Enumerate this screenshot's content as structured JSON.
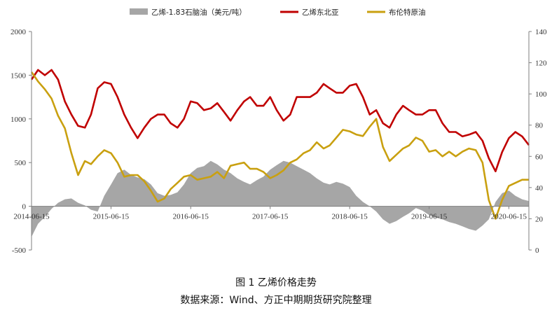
{
  "figure": {
    "title": "图 1  乙烯价格走势",
    "source": "数据来源：Wind、方正中期期货研究院整理"
  },
  "chart_data": {
    "type": "line",
    "legend_position": "top",
    "grid": false,
    "x_axis": {
      "type": "date",
      "range": [
        "2014-06-15",
        "2020-09-15"
      ],
      "tick_labels": [
        "2014-06-15",
        "2015-06-15",
        "2016-06-15",
        "2017-06-15",
        "2018-06-15",
        "2019-06-15",
        "2020-06-15"
      ]
    },
    "y_left": {
      "min": -500,
      "max": 2000,
      "step": 500,
      "tick_labels": [
        "-500",
        "0",
        "500",
        "1000",
        "1500",
        "2000"
      ]
    },
    "y_right": {
      "min": 0,
      "max": 140,
      "step": 20,
      "tick_labels": [
        "0",
        "20",
        "40",
        "60",
        "80",
        "100",
        "120",
        "140"
      ]
    },
    "series": [
      {
        "name": "乙烯-1.83石脑油（美元/吨）",
        "kind": "area",
        "axis": "left",
        "color": "#a6a6a6",
        "x": [
          "2014-06-15",
          "2014-07-15",
          "2014-08-15",
          "2014-09-15",
          "2014-10-15",
          "2014-11-15",
          "2014-12-15",
          "2015-01-15",
          "2015-02-15",
          "2015-03-15",
          "2015-04-15",
          "2015-05-15",
          "2015-06-15",
          "2015-07-15",
          "2015-08-15",
          "2015-09-15",
          "2015-10-15",
          "2015-11-15",
          "2015-12-15",
          "2016-01-15",
          "2016-02-15",
          "2016-03-15",
          "2016-04-15",
          "2016-05-15",
          "2016-06-15",
          "2016-07-15",
          "2016-08-15",
          "2016-09-15",
          "2016-10-15",
          "2016-11-15",
          "2016-12-15",
          "2017-01-15",
          "2017-02-15",
          "2017-03-15",
          "2017-04-15",
          "2017-05-15",
          "2017-06-15",
          "2017-07-15",
          "2017-08-15",
          "2017-09-15",
          "2017-10-15",
          "2017-11-15",
          "2017-12-15",
          "2018-01-15",
          "2018-02-15",
          "2018-03-15",
          "2018-04-15",
          "2018-05-15",
          "2018-06-15",
          "2018-07-15",
          "2018-08-15",
          "2018-09-15",
          "2018-10-15",
          "2018-11-15",
          "2018-12-15",
          "2019-01-15",
          "2019-02-15",
          "2019-03-15",
          "2019-04-15",
          "2019-05-15",
          "2019-06-15",
          "2019-07-15",
          "2019-08-15",
          "2019-09-15",
          "2019-10-15",
          "2019-11-15",
          "2019-12-15",
          "2020-01-15",
          "2020-02-15",
          "2020-03-15",
          "2020-04-15",
          "2020-05-15",
          "2020-06-15",
          "2020-07-15",
          "2020-08-15",
          "2020-09-15"
        ],
        "values": [
          -350,
          -200,
          -120,
          -30,
          40,
          80,
          90,
          40,
          10,
          -40,
          -60,
          120,
          250,
          380,
          420,
          360,
          330,
          310,
          250,
          150,
          120,
          130,
          160,
          250,
          380,
          440,
          460,
          520,
          480,
          420,
          380,
          320,
          280,
          250,
          300,
          340,
          420,
          470,
          520,
          500,
          460,
          420,
          380,
          320,
          270,
          250,
          280,
          260,
          220,
          120,
          50,
          0,
          -60,
          -150,
          -200,
          -170,
          -120,
          -80,
          -20,
          -50,
          -100,
          -130,
          -150,
          -180,
          -200,
          -230,
          -260,
          -280,
          -220,
          -150,
          50,
          150,
          180,
          120,
          80,
          60
        ]
      },
      {
        "name": "乙烯东北亚",
        "kind": "line",
        "axis": "left",
        "color": "#c00000",
        "x": [
          "2014-06-15",
          "2014-07-15",
          "2014-08-15",
          "2014-09-15",
          "2014-10-15",
          "2014-11-15",
          "2014-12-15",
          "2015-01-15",
          "2015-02-15",
          "2015-03-15",
          "2015-04-15",
          "2015-05-15",
          "2015-06-15",
          "2015-07-15",
          "2015-08-15",
          "2015-09-15",
          "2015-10-15",
          "2015-11-15",
          "2015-12-15",
          "2016-01-15",
          "2016-02-15",
          "2016-03-15",
          "2016-04-15",
          "2016-05-15",
          "2016-06-15",
          "2016-07-15",
          "2016-08-15",
          "2016-09-15",
          "2016-10-15",
          "2016-11-15",
          "2016-12-15",
          "2017-01-15",
          "2017-02-15",
          "2017-03-15",
          "2017-04-15",
          "2017-05-15",
          "2017-06-15",
          "2017-07-15",
          "2017-08-15",
          "2017-09-15",
          "2017-10-15",
          "2017-11-15",
          "2017-12-15",
          "2018-01-15",
          "2018-02-15",
          "2018-03-15",
          "2018-04-15",
          "2018-05-15",
          "2018-06-15",
          "2018-07-15",
          "2018-08-15",
          "2018-09-15",
          "2018-10-15",
          "2018-11-15",
          "2018-12-15",
          "2019-01-15",
          "2019-02-15",
          "2019-03-15",
          "2019-04-15",
          "2019-05-15",
          "2019-06-15",
          "2019-07-15",
          "2019-08-15",
          "2019-09-15",
          "2019-10-15",
          "2019-11-15",
          "2019-12-15",
          "2020-01-15",
          "2020-02-15",
          "2020-03-15",
          "2020-04-15",
          "2020-05-15",
          "2020-06-15",
          "2020-07-15",
          "2020-08-15",
          "2020-09-15"
        ],
        "values": [
          1450,
          1560,
          1500,
          1560,
          1450,
          1200,
          1050,
          920,
          900,
          1050,
          1350,
          1420,
          1400,
          1250,
          1050,
          900,
          780,
          900,
          1000,
          1050,
          1050,
          950,
          900,
          1000,
          1200,
          1180,
          1100,
          1120,
          1180,
          1080,
          980,
          1100,
          1200,
          1250,
          1150,
          1150,
          1250,
          1100,
          980,
          1050,
          1250,
          1250,
          1250,
          1300,
          1400,
          1350,
          1300,
          1300,
          1380,
          1400,
          1250,
          1050,
          1100,
          950,
          900,
          1050,
          1150,
          1100,
          1050,
          1050,
          1100,
          1100,
          950,
          850,
          850,
          800,
          820,
          850,
          750,
          550,
          400,
          620,
          780,
          850,
          800,
          700
        ]
      },
      {
        "name": "布伦特原油",
        "kind": "line",
        "axis": "right",
        "color": "#c9a010",
        "x": [
          "2014-06-15",
          "2014-07-15",
          "2014-08-15",
          "2014-09-15",
          "2014-10-15",
          "2014-11-15",
          "2014-12-15",
          "2015-01-15",
          "2015-02-15",
          "2015-03-15",
          "2015-04-15",
          "2015-05-15",
          "2015-06-15",
          "2015-07-15",
          "2015-08-15",
          "2015-09-15",
          "2015-10-15",
          "2015-11-15",
          "2015-12-15",
          "2016-01-15",
          "2016-02-15",
          "2016-03-15",
          "2016-04-15",
          "2016-05-15",
          "2016-06-15",
          "2016-07-15",
          "2016-08-15",
          "2016-09-15",
          "2016-10-15",
          "2016-11-15",
          "2016-12-15",
          "2017-01-15",
          "2017-02-15",
          "2017-03-15",
          "2017-04-15",
          "2017-05-15",
          "2017-06-15",
          "2017-07-15",
          "2017-08-15",
          "2017-09-15",
          "2017-10-15",
          "2017-11-15",
          "2017-12-15",
          "2018-01-15",
          "2018-02-15",
          "2018-03-15",
          "2018-04-15",
          "2018-05-15",
          "2018-06-15",
          "2018-07-15",
          "2018-08-15",
          "2018-09-15",
          "2018-10-15",
          "2018-11-15",
          "2018-12-15",
          "2019-01-15",
          "2019-02-15",
          "2019-03-15",
          "2019-04-15",
          "2019-05-15",
          "2019-06-15",
          "2019-07-15",
          "2019-08-15",
          "2019-09-15",
          "2019-10-15",
          "2019-11-15",
          "2019-12-15",
          "2020-01-15",
          "2020-02-15",
          "2020-03-15",
          "2020-04-15",
          "2020-05-15",
          "2020-06-15",
          "2020-07-15",
          "2020-08-15",
          "2020-09-15"
        ],
        "values": [
          114,
          108,
          103,
          97,
          86,
          78,
          62,
          48,
          57,
          55,
          60,
          64,
          62,
          56,
          47,
          48,
          48,
          44,
          38,
          31,
          33,
          39,
          43,
          47,
          48,
          45,
          46,
          47,
          50,
          46,
          54,
          55,
          56,
          52,
          52,
          50,
          46,
          48,
          51,
          56,
          58,
          62,
          64,
          69,
          65,
          67,
          72,
          77,
          76,
          74,
          73,
          79,
          84,
          66,
          57,
          61,
          65,
          67,
          72,
          70,
          63,
          64,
          60,
          63,
          60,
          63,
          65,
          64,
          56,
          32,
          20,
          32,
          41,
          43,
          45,
          45
        ]
      }
    ]
  }
}
